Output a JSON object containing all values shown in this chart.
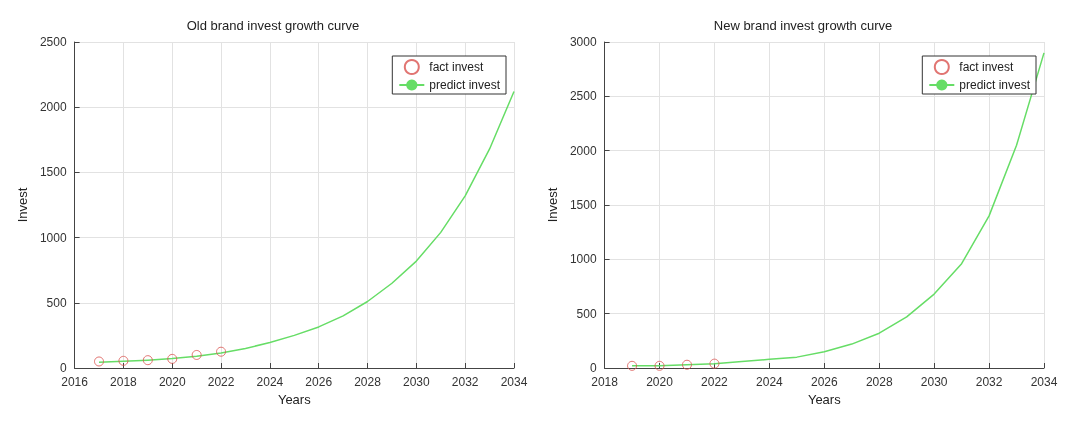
{
  "chart_data": [
    {
      "type": "line",
      "title": "Old brand invest growth curve",
      "xlabel": "Years",
      "ylabel": "Invest",
      "xlim": [
        2016,
        2034
      ],
      "xticks": [
        2016,
        2018,
        2020,
        2022,
        2024,
        2026,
        2028,
        2030,
        2032,
        2034
      ],
      "ylim": [
        0,
        2500
      ],
      "yticks": [
        0,
        500,
        1000,
        1500,
        2000,
        2500
      ],
      "grid": true,
      "legend": "top right",
      "series": [
        {
          "name": "fact invest",
          "type": "scatter",
          "marker": "circle",
          "color": "#d9534f",
          "x": [
            2017,
            2018,
            2019,
            2020,
            2021,
            2022
          ],
          "values": [
            50,
            55,
            60,
            70,
            100,
            125
          ]
        },
        {
          "name": "predict invest",
          "color": "#66dd66",
          "x": [
            2017,
            2018,
            2019,
            2020,
            2021,
            2022,
            2023,
            2024,
            2025,
            2026,
            2027,
            2028,
            2029,
            2030,
            2031,
            2032,
            2033,
            2034
          ],
          "values": [
            45,
            52,
            60,
            72,
            90,
            115,
            150,
            195,
            250,
            315,
            400,
            510,
            650,
            820,
            1040,
            1320,
            1680,
            2120
          ]
        }
      ]
    },
    {
      "type": "line",
      "title": "New brand invest growth curve",
      "xlabel": "Years",
      "ylabel": "Invest",
      "xlim": [
        2018,
        2034
      ],
      "xticks": [
        2018,
        2020,
        2022,
        2024,
        2026,
        2028,
        2030,
        2032,
        2034
      ],
      "ylim": [
        0,
        3000
      ],
      "yticks": [
        0,
        500,
        1000,
        1500,
        2000,
        2500,
        3000
      ],
      "grid": true,
      "legend": "top right",
      "series": [
        {
          "name": "fact invest",
          "type": "scatter",
          "marker": "circle",
          "color": "#d9534f",
          "x": [
            2019,
            2020,
            2021,
            2022
          ],
          "values": [
            20,
            20,
            30,
            40
          ]
        },
        {
          "name": "predict invest",
          "color": "#66dd66",
          "x": [
            2019,
            2020,
            2021,
            2022,
            2023,
            2024,
            2025,
            2026,
            2027,
            2028,
            2029,
            2030,
            2031,
            2032,
            2033,
            2034
          ],
          "values": [
            20,
            20,
            30,
            40,
            60,
            80,
            100,
            150,
            220,
            320,
            470,
            680,
            960,
            1400,
            2050,
            2900
          ]
        }
      ]
    }
  ]
}
